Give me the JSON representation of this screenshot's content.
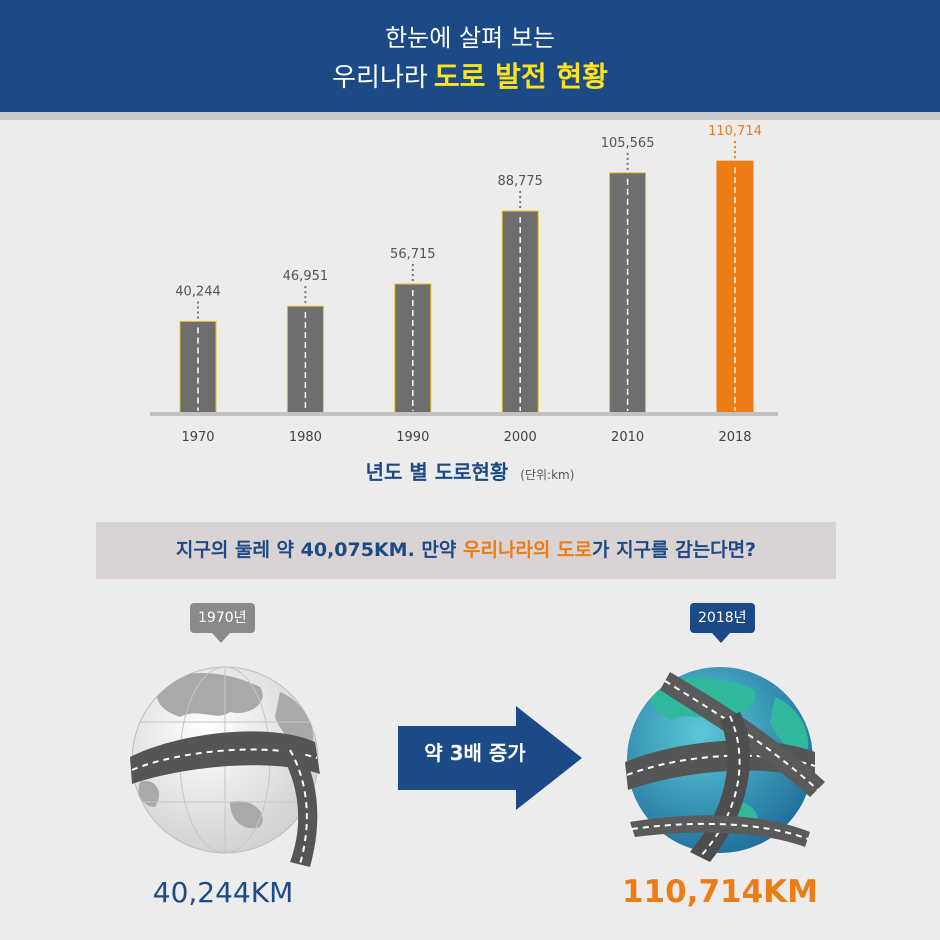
{
  "header": {
    "line1": "한눈에 살펴 보는",
    "line2_prefix": "우리나라",
    "line2_highlight": "도로 발전 현황"
  },
  "chart_data": {
    "type": "bar",
    "categories": [
      "1970",
      "1980",
      "1990",
      "2000",
      "2010",
      "2018"
    ],
    "values": [
      40244,
      46951,
      56715,
      88775,
      105565,
      110714
    ],
    "value_labels": [
      "40,244",
      "46,951",
      "56,715",
      "88,775",
      "105,565",
      "110,714"
    ],
    "highlight_index": 5,
    "title": "년도 별 도로현황",
    "unit": "(단위:km)",
    "ylim": [
      0,
      120000
    ],
    "grid": false,
    "colors": {
      "bar": "#6e6e6e",
      "highlight": "#ee7c15",
      "bar_border": "#e8c21a"
    }
  },
  "question": {
    "prefix": "지구의 둘레  약 40,075KM. 만약 ",
    "highlight": "우리나라의 도로",
    "suffix": "가 지구를 감는다면?"
  },
  "comparison": {
    "left_tag": "1970년",
    "right_tag": "2018년",
    "arrow_label": "약 3배 증가",
    "left_value": "40,244KM",
    "right_value": "110,714KM"
  },
  "colors": {
    "navy": "#1b4a86",
    "orange": "#ee7c15",
    "yellow": "#ffe31a"
  },
  "icons": {
    "left_globe": "gray-globe-road-icon",
    "right_globe": "blue-globe-roads-icon",
    "arrow": "right-arrow-icon"
  }
}
